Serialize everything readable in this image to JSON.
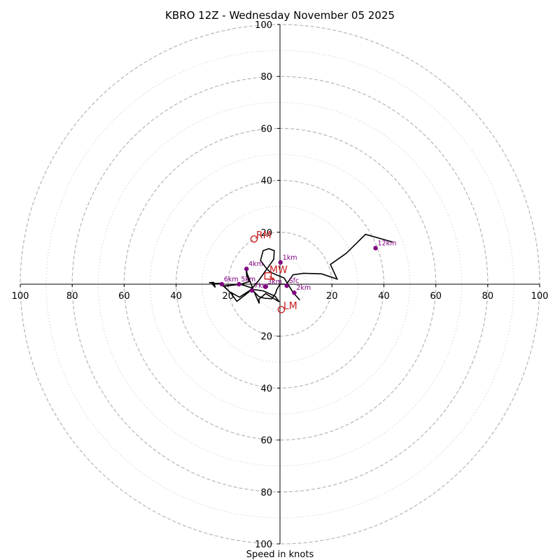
{
  "chart_data": {
    "type": "hodograph",
    "title": "KBRO 12Z - Wednesday November 05 2025",
    "xlabel": "Speed in knots",
    "range": [
      -100,
      100
    ],
    "rings_major": [
      20,
      40,
      60,
      80,
      100
    ],
    "rings_minor": [
      10,
      30,
      50,
      70,
      90
    ],
    "tick_labels": {
      "x": [
        "100",
        "80",
        "60",
        "40",
        "20",
        "20",
        "40",
        "60",
        "80",
        "100"
      ],
      "y": [
        "100",
        "80",
        "60",
        "40",
        "20",
        "20",
        "40",
        "60",
        "80",
        "100"
      ]
    },
    "trace": [
      [
        7.6,
        -6.1
      ],
      [
        4.9,
        -3.0
      ],
      [
        1.6,
        2.4
      ],
      [
        -1.4,
        3.6
      ],
      [
        -3.8,
        4.7
      ],
      [
        -5.3,
        6.2
      ],
      [
        -7.5,
        9.1
      ],
      [
        -6.5,
        12.9
      ],
      [
        -4.3,
        13.7
      ],
      [
        -2.2,
        12.9
      ],
      [
        -2.4,
        9.6
      ],
      [
        -5.4,
        5.4
      ],
      [
        -8.3,
        1.3
      ],
      [
        -11.0,
        -1.9
      ],
      [
        -6.4,
        -2.6
      ],
      [
        -1.9,
        -4.6
      ],
      [
        -0.3,
        -6.8
      ],
      [
        -5.5,
        -3.6
      ],
      [
        -8.1,
        -5.8
      ],
      [
        -8.0,
        -7.4
      ],
      [
        -10.2,
        -2.4
      ],
      [
        -12.7,
        4.2
      ],
      [
        -13.1,
        6.2
      ],
      [
        -12.8,
        3.3
      ],
      [
        -11.8,
        1.0
      ],
      [
        -15.1,
        0.0
      ],
      [
        -21.7,
        -0.8
      ],
      [
        -19.1,
        -3.2
      ],
      [
        -16.6,
        -6.6
      ],
      [
        -12.1,
        -3.1
      ],
      [
        -10.6,
        -1.5
      ],
      [
        -15.3,
        0.0
      ],
      [
        -21.8,
        -0.7
      ],
      [
        -22.9,
        0.3
      ],
      [
        -24.7,
        0.3
      ],
      [
        -26.0,
        0.0
      ],
      [
        -24.9,
        -1.2
      ],
      [
        -25.6,
        0.7
      ],
      [
        -27.3,
        0.6
      ],
      [
        -22.3,
        0.0
      ],
      [
        -19.6,
        -2.8
      ],
      [
        -15.6,
        -5.0
      ],
      [
        -11.0,
        -2.0
      ],
      [
        -8.1,
        -4.8
      ],
      [
        -6.1,
        -5.4
      ],
      [
        -3.1,
        -5.6
      ],
      [
        -1.7,
        -3.5
      ],
      [
        -1.2,
        -2.0
      ],
      [
        0.0,
        0.0
      ],
      [
        2.5,
        0.0
      ],
      [
        5.0,
        3.6
      ],
      [
        9.0,
        4.2
      ],
      [
        16.0,
        4.0
      ],
      [
        22.0,
        2.0
      ],
      [
        19.4,
        7.6
      ],
      [
        25.5,
        11.9
      ],
      [
        32.9,
        19.2
      ],
      [
        43.5,
        16.2
      ]
    ],
    "height_labels": [
      {
        "label": "Sfc",
        "u": 2.6,
        "v": -0.6
      },
      {
        "label": "1km",
        "u": 0.2,
        "v": 8.4
      },
      {
        "label": "2km",
        "u": 5.5,
        "v": -3.3
      },
      {
        "label": "3km",
        "u": -5.6,
        "v": -1.0
      },
      {
        "label": "4km",
        "u": -12.9,
        "v": 5.9
      },
      {
        "label": "5km",
        "u": -15.8,
        "v": 0.0
      },
      {
        "label": "6km",
        "u": -22.4,
        "v": 0.0
      },
      {
        "label": "7km",
        "u": -10.8,
        "v": -2.4
      },
      {
        "label": "12km",
        "u": 36.8,
        "v": 13.9
      }
    ],
    "storm_motion": [
      {
        "label": "RM",
        "u": -10.0,
        "v": 17.4
      },
      {
        "label": "LM",
        "u": 0.5,
        "v": -9.8
      }
    ],
    "mean_wind": {
      "label": "MW",
      "u": -4.6,
      "v": 3.2
    },
    "mean_wind_arrow": {
      "u1": -4.0,
      "v1": 3.0,
      "u2": -2.0,
      "v2": 1.5
    },
    "colors": {
      "trace": "#000000",
      "height_marker": "#800080",
      "storm": "#c81e1e",
      "ring_major": "#b5b5b5",
      "ring_minor": "#d2d2d2",
      "axis": "#000000"
    }
  }
}
